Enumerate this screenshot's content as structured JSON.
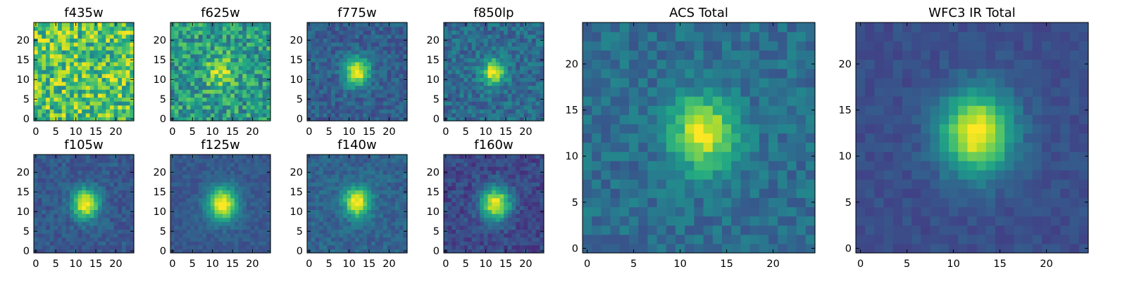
{
  "chart_data": [
    {
      "type": "heatmap",
      "title": "f435w",
      "seed": 11,
      "noise": 0.55,
      "base": 0.72,
      "amp": 0.0,
      "sigma": 3.0,
      "center": [
        12,
        12
      ],
      "nx": 25,
      "ny": 25,
      "xlim": [
        -0.5,
        24.5
      ],
      "ylim": [
        -0.5,
        24.5
      ],
      "xticks": [
        0,
        5,
        10,
        15,
        20
      ],
      "yticks": [
        0,
        5,
        10,
        15,
        20
      ],
      "colormap": "viridis"
    },
    {
      "type": "heatmap",
      "title": "f625w",
      "seed": 23,
      "noise": 0.45,
      "base": 0.55,
      "amp": 0.35,
      "sigma": 2.4,
      "center": [
        12,
        12
      ],
      "nx": 25,
      "ny": 25,
      "xlim": [
        -0.5,
        24.5
      ],
      "ylim": [
        -0.5,
        24.5
      ],
      "xticks": [
        0,
        5,
        10,
        15,
        20
      ],
      "yticks": [
        0,
        5,
        10,
        15,
        20
      ],
      "colormap": "viridis"
    },
    {
      "type": "heatmap",
      "title": "f775w",
      "seed": 37,
      "noise": 0.2,
      "base": 0.3,
      "amp": 0.7,
      "sigma": 2.2,
      "center": [
        12,
        12
      ],
      "nx": 25,
      "ny": 25,
      "xlim": [
        -0.5,
        24.5
      ],
      "ylim": [
        -0.5,
        24.5
      ],
      "xticks": [
        0,
        5,
        10,
        15,
        20
      ],
      "yticks": [
        0,
        5,
        10,
        15,
        20
      ],
      "colormap": "viridis"
    },
    {
      "type": "heatmap",
      "title": "f850lp",
      "seed": 41,
      "noise": 0.25,
      "base": 0.35,
      "amp": 0.62,
      "sigma": 2.0,
      "center": [
        12,
        12
      ],
      "nx": 25,
      "ny": 25,
      "xlim": [
        -0.5,
        24.5
      ],
      "ylim": [
        -0.5,
        24.5
      ],
      "xticks": [
        0,
        5,
        10,
        15,
        20
      ],
      "yticks": [
        0,
        5,
        10,
        15,
        20
      ],
      "colormap": "viridis"
    },
    {
      "type": "heatmap",
      "title": "f105w",
      "seed": 53,
      "noise": 0.16,
      "base": 0.28,
      "amp": 0.75,
      "sigma": 2.3,
      "center": [
        12.5,
        12
      ],
      "nx": 25,
      "ny": 25,
      "xlim": [
        -0.5,
        24.5
      ],
      "ylim": [
        -0.5,
        24.5
      ],
      "xticks": [
        0,
        5,
        10,
        15,
        20
      ],
      "yticks": [
        0,
        5,
        10,
        15,
        20
      ],
      "colormap": "viridis"
    },
    {
      "type": "heatmap",
      "title": "f125w",
      "seed": 67,
      "noise": 0.12,
      "base": 0.28,
      "amp": 0.75,
      "sigma": 2.6,
      "center": [
        12.5,
        12
      ],
      "nx": 25,
      "ny": 25,
      "xlim": [
        -0.5,
        24.5
      ],
      "ylim": [
        -0.5,
        24.5
      ],
      "xticks": [
        0,
        5,
        10,
        15,
        20
      ],
      "yticks": [
        0,
        5,
        10,
        15,
        20
      ],
      "colormap": "viridis"
    },
    {
      "type": "heatmap",
      "title": "f140w",
      "seed": 71,
      "noise": 0.16,
      "base": 0.32,
      "amp": 0.7,
      "sigma": 2.3,
      "center": [
        12,
        12.5
      ],
      "nx": 25,
      "ny": 25,
      "xlim": [
        -0.5,
        24.5
      ],
      "ylim": [
        -0.5,
        24.5
      ],
      "xticks": [
        0,
        5,
        10,
        15,
        20
      ],
      "yticks": [
        0,
        5,
        10,
        15,
        20
      ],
      "colormap": "viridis"
    },
    {
      "type": "heatmap",
      "title": "f160w",
      "seed": 83,
      "noise": 0.18,
      "base": 0.22,
      "amp": 0.8,
      "sigma": 2.5,
      "center": [
        12.5,
        12
      ],
      "nx": 25,
      "ny": 25,
      "xlim": [
        -0.5,
        24.5
      ],
      "ylim": [
        -0.5,
        24.5
      ],
      "xticks": [
        0,
        5,
        10,
        15,
        20
      ],
      "yticks": [
        0,
        5,
        10,
        15,
        20
      ],
      "colormap": "viridis"
    },
    {
      "type": "heatmap",
      "title": "ACS Total",
      "seed": 97,
      "noise": 0.2,
      "base": 0.36,
      "amp": 0.62,
      "sigma": 2.4,
      "center": [
        12.5,
        12.5
      ],
      "nx": 25,
      "ny": 25,
      "xlim": [
        -0.5,
        24.5
      ],
      "ylim": [
        -0.5,
        24.5
      ],
      "xticks": [
        0,
        5,
        10,
        15,
        20
      ],
      "yticks": [
        0,
        5,
        10,
        15,
        20
      ],
      "colormap": "viridis"
    },
    {
      "type": "heatmap",
      "title": "WFC3 IR Total",
      "seed": 109,
      "noise": 0.1,
      "base": 0.24,
      "amp": 0.78,
      "sigma": 2.7,
      "center": [
        12.5,
        12.5
      ],
      "nx": 25,
      "ny": 25,
      "xlim": [
        -0.5,
        24.5
      ],
      "ylim": [
        -0.5,
        24.5
      ],
      "xticks": [
        0,
        5,
        10,
        15,
        20
      ],
      "yticks": [
        0,
        5,
        10,
        15,
        20
      ],
      "colormap": "viridis"
    }
  ]
}
